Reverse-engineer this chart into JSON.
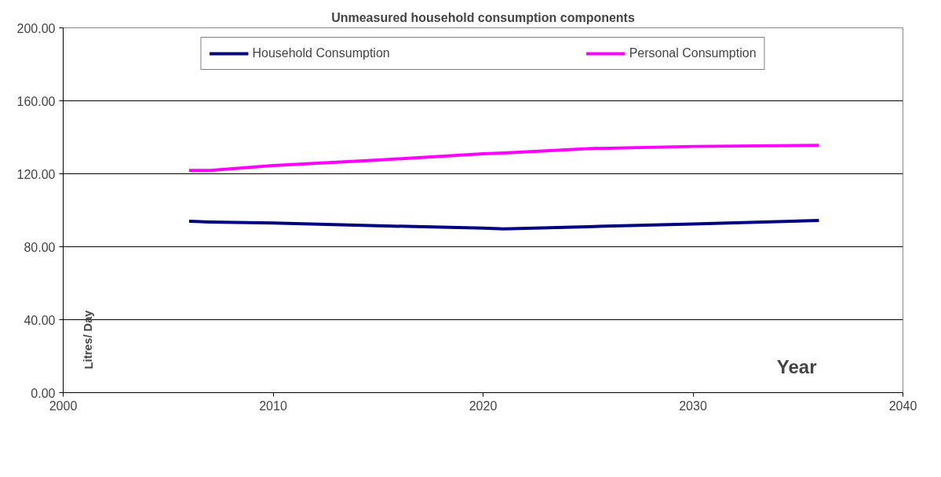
{
  "chart_data": {
    "type": "line",
    "title": "Unmeasured household consumption components",
    "xlabel": "Year",
    "ylabel": "Litres/ Day",
    "x": [
      2006,
      2007,
      2010,
      2015,
      2020,
      2021,
      2025,
      2030,
      2036
    ],
    "series": [
      {
        "name": "Household Consumption",
        "color": "#000080",
        "values": [
          94.0,
          93.6,
          93.0,
          91.5,
          90.2,
          89.8,
          91.0,
          92.5,
          94.4
        ]
      },
      {
        "name": "Personal Consumption",
        "color": "#ff00ff",
        "values": [
          121.8,
          121.8,
          124.5,
          127.5,
          131.0,
          131.4,
          133.8,
          135.0,
          135.6
        ]
      }
    ],
    "xlim": [
      2000,
      2040
    ],
    "xticks": [
      2000,
      2010,
      2020,
      2030,
      2040
    ],
    "ylim": [
      0,
      200
    ],
    "yticks": [
      {
        "value": 0,
        "label": "0.00"
      },
      {
        "value": 40,
        "label": "40.00"
      },
      {
        "value": 80,
        "label": "80.00"
      },
      {
        "value": 120,
        "label": "120.00"
      },
      {
        "value": 160,
        "label": "160.00"
      },
      {
        "value": 200,
        "label": "200.00"
      }
    ],
    "grid": "y",
    "legend": "top",
    "marker": "none",
    "line_style": "solid"
  }
}
